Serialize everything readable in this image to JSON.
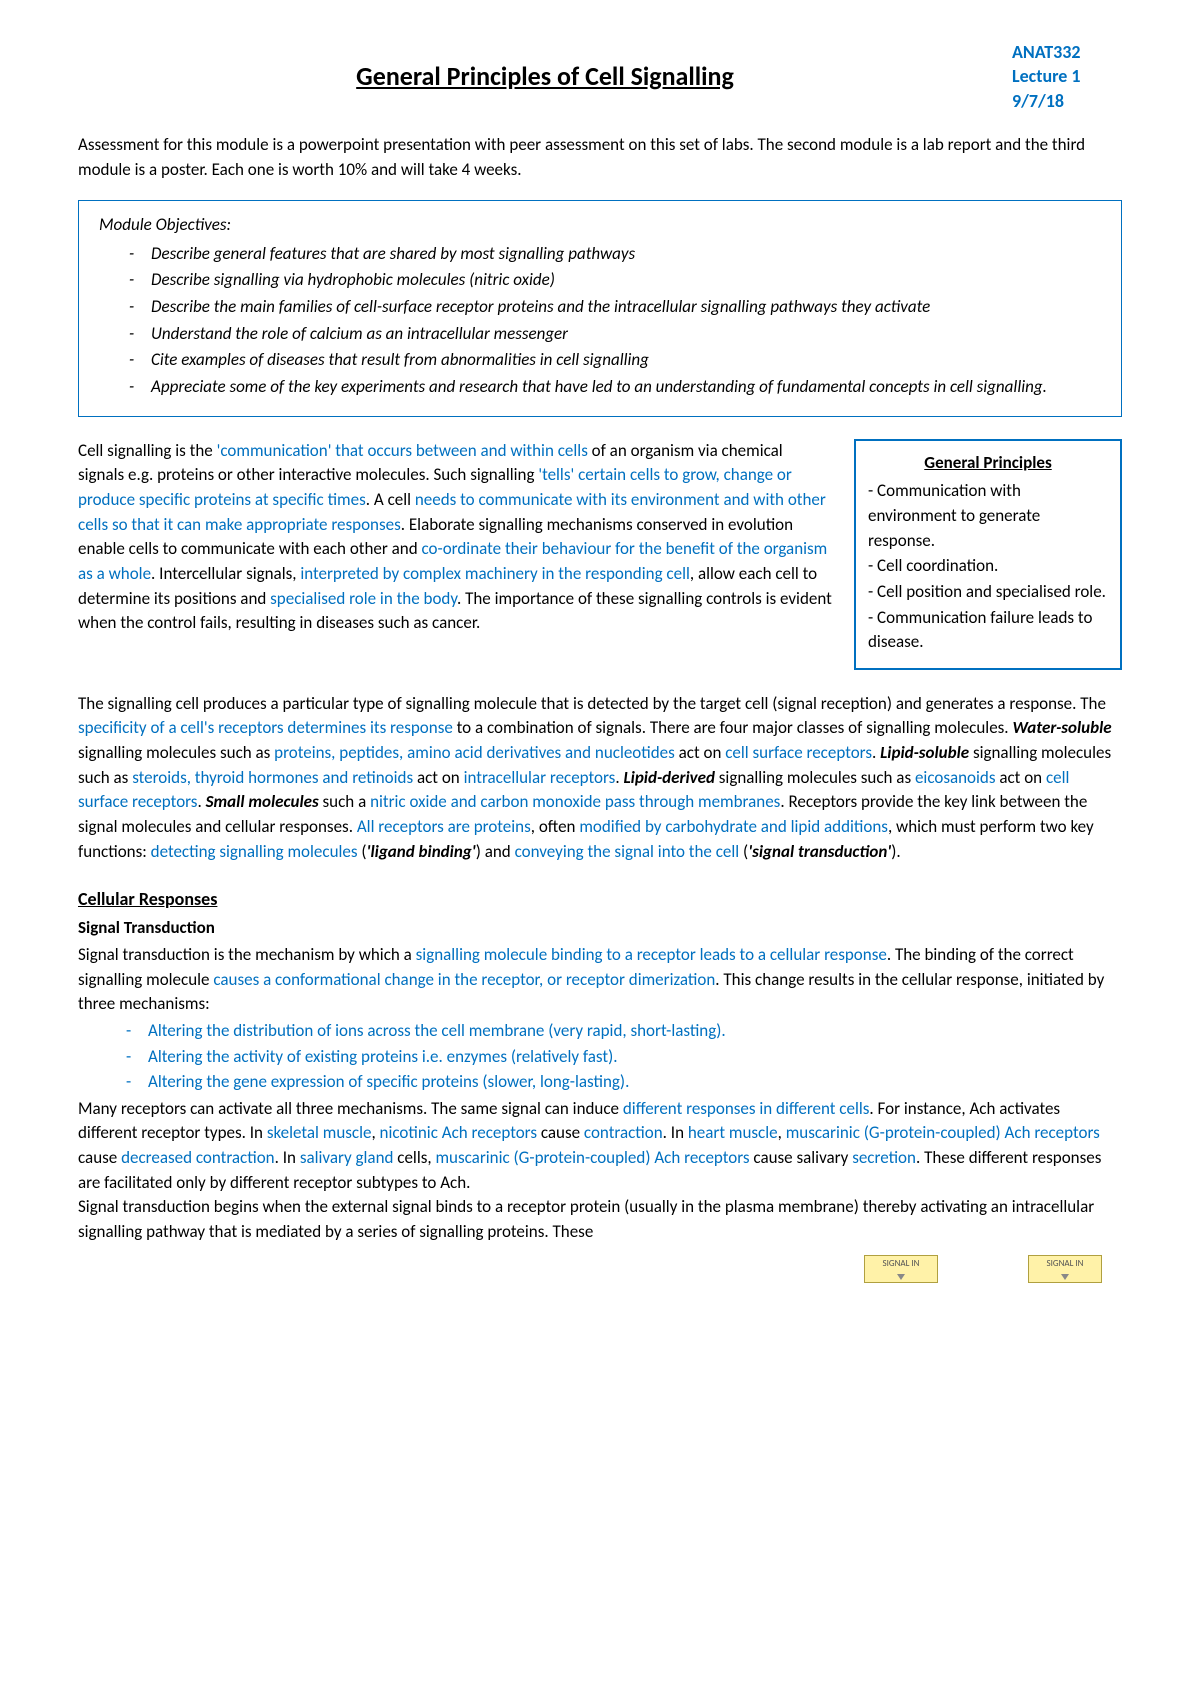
{
  "header": {
    "title": "General Principles of Cell Signalling",
    "course": "ANAT332",
    "lecture": "Lecture 1",
    "date": "9/7/18"
  },
  "intro": "Assessment for this module is a powerpoint presentation with peer assessment on this set of labs. The second module is a lab report and the third module is a poster. Each one is worth 10% and will take 4 weeks.",
  "objectives": {
    "heading": "Module Objectives:",
    "items": [
      "Describe general features that are shared by most signalling pathways",
      "Describe signalling via hydrophobic molecules (nitric oxide)",
      "Describe the main families of cell-surface receptor proteins and the intracellular signalling pathways they activate",
      "Understand the role of calcium as an intracellular messenger",
      "Cite examples of diseases that result from abnormalities in cell signalling",
      "Appreciate some of the key experiments and research that have led to an understanding of fundamental concepts in cell signalling."
    ]
  },
  "p1": {
    "t0": "Cell signalling is the ",
    "b0": "'communication' that occurs between and within cells",
    "t1": " of an organism via chemical signals e.g. proteins or other interactive molecules. Such signalling ",
    "b1": "'tells' certain cells to grow, change or produce specific proteins at specific times",
    "t2": ". A cell ",
    "b2": "needs to communicate with its environment and with other cells so that it can make appropriate responses",
    "t3": ". Elaborate signalling mechanisms conserved in evolution enable cells to communicate with each other and ",
    "b3": "co-ordinate their behaviour for the benefit of the organism as a whole",
    "t4": ". Intercellular signals, ",
    "b4": "interpreted by complex machinery in the responding cell",
    "t5": ", allow each cell to determine its positions and ",
    "b5": "specialised role in the body",
    "t6": ". The importance of these signalling controls is evident when the control fails, resulting in diseases such as cancer."
  },
  "principles": {
    "title": "General Principles",
    "items": [
      "- Communication with environment to generate response.",
      "- Cell coordination.",
      "- Cell position and specialised role.",
      "- Communication failure leads to disease."
    ]
  },
  "p2": {
    "t0": "The signalling cell produces a particular type of signalling molecule that is detected by the target cell (signal reception) and generates a response. The ",
    "b0": "specificity of a cell's receptors determines its response",
    "t1": " to a combination of signals. There are four major classes of signalling molecules. ",
    "bi0": "Water-soluble",
    "t2": " signalling molecules such as ",
    "b1": "proteins, peptides, amino acid derivatives and nucleotides",
    "t3": " act on ",
    "b2": "cell surface receptors",
    "t4": ". ",
    "bi1": "Lipid-soluble",
    "t5": " signalling molecules such as ",
    "b3": "steroids, thyroid hormones and retinoids",
    "t6": " act on ",
    "b4": "intracellular receptors",
    "t7": ". ",
    "bi2": "Lipid-derived",
    "t8": " signalling molecules such as ",
    "b5": "eicosanoids",
    "t9": " act on ",
    "b6": "cell surface receptors",
    "t10": ". ",
    "bi3": "Small molecules",
    "t11": " such a ",
    "b7": "nitric oxide and carbon monoxide pass through membranes",
    "t12": ". Receptors provide the key link between the signal molecules and cellular responses. ",
    "b8": "All receptors are proteins",
    "t13": ", often ",
    "b9": "modified by carbohydrate and lipid additions",
    "t14": ", which must perform two key functions: ",
    "b10": "detecting signalling molecules",
    "t15": " (",
    "bi4": "'ligand binding'",
    "t16": ") and ",
    "b11": "conveying the signal into the cell",
    "t17": " (",
    "bi5": "'signal transduction'",
    "t18": ")."
  },
  "responses": {
    "heading": "Cellular Responses",
    "sub": "Signal Transduction",
    "t0": "Signal transduction is the mechanism by which a ",
    "b0": "signalling molecule binding to a receptor leads to a cellular response",
    "t1": ". The binding of the correct signalling molecule ",
    "b1": "causes a conformational change in the receptor, or receptor dimerization",
    "t2": ". This change results in the cellular response, initiated by three mechanisms:",
    "mechs": [
      "Altering the distribution of ions across the cell membrane (very rapid, short-lasting).",
      "Altering the activity of existing proteins i.e. enzymes (relatively fast).",
      "Altering the gene expression of specific proteins (slower, long-lasting)."
    ],
    "t3": "Many receptors can activate all three mechanisms. The same signal can induce ",
    "b2": "different responses in different cells",
    "t4": ". For instance, Ach activates different receptor types. In ",
    "b3": "skeletal muscle",
    "t5": ", ",
    "b4": "nicotinic Ach receptors",
    "t6": " cause ",
    "b5": "contraction",
    "t7": ". In ",
    "b6": "heart muscle",
    "t8": ", ",
    "b7": "muscarinic (G-protein-coupled) Ach receptors",
    "t9": " cause ",
    "b8": "decreased contraction",
    "t10": ". In ",
    "b9": "salivary gland",
    "t11": " cells, ",
    "b10": "muscarinic (G-protein-coupled) Ach receptors",
    "t12": " cause salivary ",
    "b11": "secretion",
    "t13": ". These different responses are facilitated only by different receptor subtypes to Ach.",
    "t14": "Signal transduction begins when the external signal binds to a receptor protein (usually in the plasma membrane) thereby activating an intracellular signalling pathway that is mediated by a series of signalling proteins. These"
  },
  "footer": {
    "label": "SIGNAL IN"
  },
  "colors": {
    "accent": "#0070c0",
    "text": "#000000",
    "box_bg": "#fff2a8"
  }
}
